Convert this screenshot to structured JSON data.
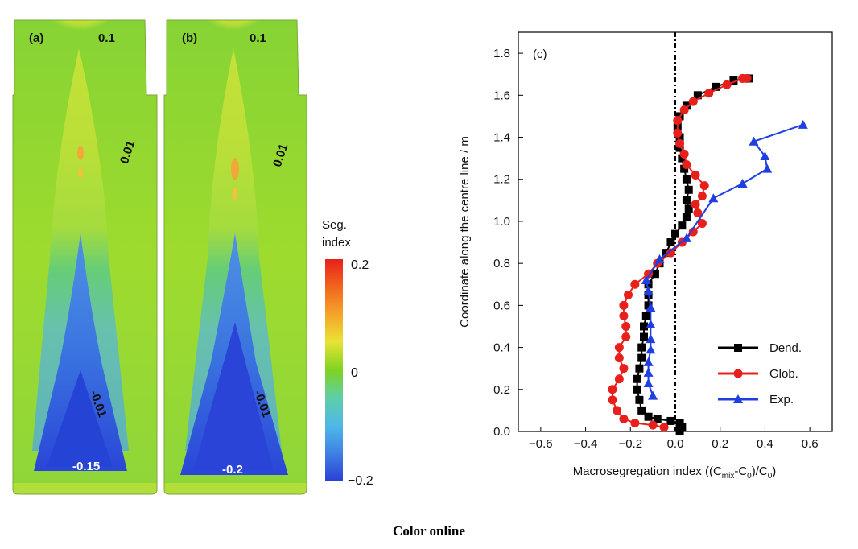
{
  "panels": {
    "a": {
      "label": "(a)",
      "contour_labels": {
        "top": "0.1",
        "mid": "0.01",
        "lower": "-0.01",
        "bottom": "-0.15"
      }
    },
    "b": {
      "label": "(b)",
      "contour_labels": {
        "top": "0.1",
        "mid": "0.01",
        "lower": "-0.01",
        "bottom": "-0.2"
      }
    }
  },
  "colorbar": {
    "title_line1": "Seg.",
    "title_line2": "index",
    "tick_labels": {
      "max": "0.2",
      "zero": "0",
      "min": "−0.2"
    },
    "colors": {
      "max": "#e8201c",
      "zero": "#7ed321",
      "min": "#2a3fd6"
    }
  },
  "caption": "Color online",
  "chart_data": {
    "type": "line",
    "panel_label": "(c)",
    "xlabel": "Macrosegregation index ((C",
    "xlabel_sub1": "mix",
    "xlabel_mid": "-C",
    "xlabel_sub2": "0",
    "xlabel_end": ")/C",
    "xlabel_sub3": "0",
    "xlabel_close": ")",
    "ylabel": "Coordinate along the centre line / m",
    "xlim": [
      -0.7,
      0.7
    ],
    "ylim": [
      0,
      1.9
    ],
    "xticks": [
      "-0.6",
      "-0.4",
      "-0.2",
      "0.0",
      "0.2",
      "0.4",
      "0.6"
    ],
    "yticks": [
      "0.0",
      "0.2",
      "0.4",
      "0.6",
      "0.8",
      "1.0",
      "1.2",
      "1.4",
      "1.6",
      "1.8"
    ],
    "legend_position": "bottom-right",
    "reference_line_x": 0,
    "series": [
      {
        "name": "Dend.",
        "color": "#000000",
        "marker": "square",
        "points": [
          [
            0.02,
            0.0
          ],
          [
            0.03,
            0.02
          ],
          [
            0.02,
            0.04
          ],
          [
            -0.02,
            0.05
          ],
          [
            -0.08,
            0.06
          ],
          [
            -0.12,
            0.07
          ],
          [
            -0.15,
            0.1
          ],
          [
            -0.16,
            0.15
          ],
          [
            -0.17,
            0.2
          ],
          [
            -0.17,
            0.25
          ],
          [
            -0.16,
            0.3
          ],
          [
            -0.15,
            0.35
          ],
          [
            -0.15,
            0.4
          ],
          [
            -0.14,
            0.45
          ],
          [
            -0.14,
            0.5
          ],
          [
            -0.13,
            0.55
          ],
          [
            -0.12,
            0.6
          ],
          [
            -0.12,
            0.65
          ],
          [
            -0.12,
            0.7
          ],
          [
            -0.09,
            0.75
          ],
          [
            -0.07,
            0.8
          ],
          [
            -0.04,
            0.85
          ],
          [
            -0.02,
            0.9
          ],
          [
            0.0,
            0.94
          ],
          [
            0.03,
            0.98
          ],
          [
            0.05,
            1.02
          ],
          [
            0.06,
            1.06
          ],
          [
            0.05,
            1.1
          ],
          [
            0.06,
            1.15
          ],
          [
            0.05,
            1.2
          ],
          [
            0.04,
            1.25
          ],
          [
            0.03,
            1.3
          ],
          [
            0.02,
            1.35
          ],
          [
            0.02,
            1.4
          ],
          [
            0.01,
            1.45
          ],
          [
            0.02,
            1.5
          ],
          [
            0.05,
            1.55
          ],
          [
            0.1,
            1.6
          ],
          [
            0.18,
            1.64
          ],
          [
            0.26,
            1.67
          ],
          [
            0.33,
            1.68
          ]
        ]
      },
      {
        "name": "Glob.",
        "color": "#e8201c",
        "marker": "circle",
        "points": [
          [
            -0.05,
            0.02
          ],
          [
            -0.1,
            0.03
          ],
          [
            -0.18,
            0.04
          ],
          [
            -0.23,
            0.06
          ],
          [
            -0.26,
            0.1
          ],
          [
            -0.28,
            0.15
          ],
          [
            -0.28,
            0.2
          ],
          [
            -0.25,
            0.25
          ],
          [
            -0.23,
            0.3
          ],
          [
            -0.25,
            0.35
          ],
          [
            -0.25,
            0.4
          ],
          [
            -0.22,
            0.45
          ],
          [
            -0.22,
            0.5
          ],
          [
            -0.23,
            0.55
          ],
          [
            -0.23,
            0.6
          ],
          [
            -0.21,
            0.65
          ],
          [
            -0.18,
            0.7
          ],
          [
            -0.12,
            0.75
          ],
          [
            -0.08,
            0.8
          ],
          [
            -0.02,
            0.85
          ],
          [
            0.03,
            0.9
          ],
          [
            0.08,
            0.95
          ],
          [
            0.12,
            0.99
          ],
          [
            0.1,
            1.04
          ],
          [
            0.09,
            1.08
          ],
          [
            0.12,
            1.12
          ],
          [
            0.13,
            1.17
          ],
          [
            0.09,
            1.22
          ],
          [
            0.05,
            1.27
          ],
          [
            0.04,
            1.32
          ],
          [
            0.02,
            1.37
          ],
          [
            0.01,
            1.42
          ],
          [
            0.01,
            1.48
          ],
          [
            0.04,
            1.53
          ],
          [
            0.08,
            1.57
          ],
          [
            0.15,
            1.61
          ],
          [
            0.23,
            1.65
          ],
          [
            0.3,
            1.68
          ],
          [
            0.32,
            1.68
          ]
        ]
      },
      {
        "name": "Exp.",
        "color": "#1f3fe0",
        "marker": "triangle",
        "points": [
          [
            -0.1,
            0.17
          ],
          [
            -0.12,
            0.23
          ],
          [
            -0.12,
            0.28
          ],
          [
            -0.12,
            0.33
          ],
          [
            -0.11,
            0.39
          ],
          [
            -0.11,
            0.44
          ],
          [
            -0.11,
            0.51
          ],
          [
            -0.11,
            0.59
          ],
          [
            -0.12,
            0.67
          ],
          [
            -0.13,
            0.72
          ],
          [
            -0.07,
            0.82
          ],
          [
            0.05,
            0.92
          ],
          [
            0.17,
            1.11
          ],
          [
            0.3,
            1.18
          ],
          [
            0.41,
            1.25
          ],
          [
            0.4,
            1.31
          ],
          [
            0.35,
            1.38
          ],
          [
            0.57,
            1.46
          ]
        ]
      }
    ]
  }
}
